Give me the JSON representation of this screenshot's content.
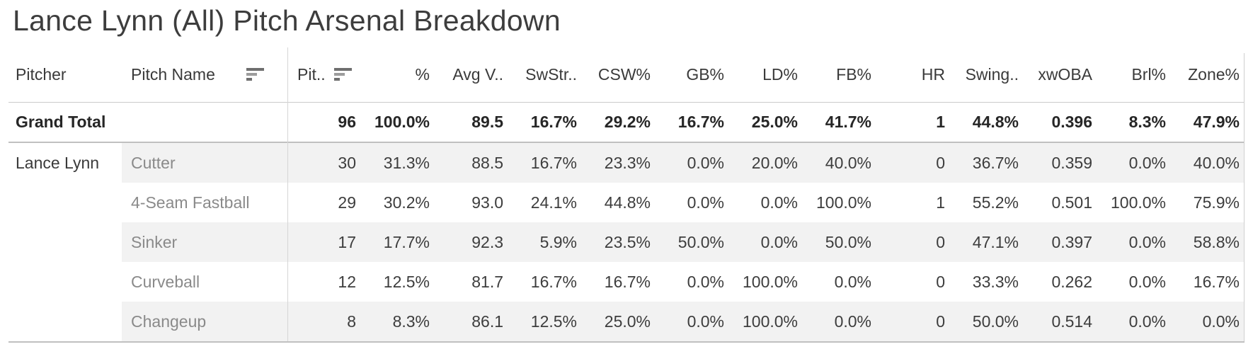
{
  "title": "Lance Lynn (All) Pitch Arsenal Breakdown",
  "icons": {
    "pitch_name_sort": "sort-descending-icon",
    "pitches_sort": "sort-descending-icon"
  },
  "colors": {
    "title_text": "#3d3d3d",
    "header_text": "#3a3a3a",
    "value_text": "#3d3d3d",
    "pitch_name_text": "#8a8a8a",
    "grand_total_text": "#262626",
    "row_band": "#f2f2f2",
    "header_border": "#cbcbcb",
    "total_border": "#c0c0c0",
    "column_divider": "#d6d6d6"
  },
  "chart_data": {
    "type": "table",
    "title": "Lance Lynn (All) Pitch Arsenal Breakdown",
    "row_header_columns": [
      "Pitcher",
      "Pitch Name"
    ],
    "columns": [
      "Pit..",
      "%",
      "Avg V..",
      "SwStr..",
      "CSW%",
      "GB%",
      "LD%",
      "FB%",
      "HR",
      "Swing..",
      "xwOBA",
      "Brl%",
      "Zone%"
    ],
    "grand_total": {
      "label": "Grand Total",
      "values": [
        "96",
        "100.0%",
        "89.5",
        "16.7%",
        "29.2%",
        "16.7%",
        "25.0%",
        "41.7%",
        "1",
        "44.8%",
        "0.396",
        "8.3%",
        "47.9%"
      ]
    },
    "groups": [
      {
        "pitcher": "Lance Lynn",
        "rows": [
          {
            "pitch": "Cutter",
            "values": [
              "30",
              "31.3%",
              "88.5",
              "16.7%",
              "23.3%",
              "0.0%",
              "20.0%",
              "40.0%",
              "0",
              "36.7%",
              "0.359",
              "0.0%",
              "40.0%"
            ]
          },
          {
            "pitch": "4-Seam Fastball",
            "values": [
              "29",
              "30.2%",
              "93.0",
              "24.1%",
              "44.8%",
              "0.0%",
              "0.0%",
              "100.0%",
              "1",
              "55.2%",
              "0.501",
              "100.0%",
              "75.9%"
            ]
          },
          {
            "pitch": "Sinker",
            "values": [
              "17",
              "17.7%",
              "92.3",
              "5.9%",
              "23.5%",
              "50.0%",
              "0.0%",
              "50.0%",
              "0",
              "47.1%",
              "0.397",
              "0.0%",
              "58.8%"
            ]
          },
          {
            "pitch": "Curveball",
            "values": [
              "12",
              "12.5%",
              "81.7",
              "16.7%",
              "16.7%",
              "0.0%",
              "100.0%",
              "0.0%",
              "0",
              "33.3%",
              "0.262",
              "0.0%",
              "16.7%"
            ]
          },
          {
            "pitch": "Changeup",
            "values": [
              "8",
              "8.3%",
              "86.1",
              "12.5%",
              "25.0%",
              "0.0%",
              "100.0%",
              "0.0%",
              "0",
              "50.0%",
              "0.514",
              "0.0%",
              "0.0%"
            ]
          }
        ]
      }
    ]
  }
}
